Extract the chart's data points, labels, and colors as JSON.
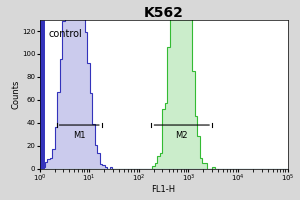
{
  "title": "K562",
  "xlabel": "FL1-H",
  "ylabel": "Counts",
  "ylim": [
    0,
    130
  ],
  "yticks": [
    0,
    20,
    40,
    60,
    80,
    100,
    120
  ],
  "xlim_log": [
    1,
    100000
  ],
  "background_color": "#d8d8d8",
  "plot_bg_color": "#ffffff",
  "control_label": "control",
  "control_color": "#3333bb",
  "sample_color": "#33bb33",
  "m1_label": "M1",
  "m2_label": "M2",
  "title_fontsize": 10,
  "axis_fontsize": 5,
  "label_fontsize": 6,
  "control_peak_x": 5,
  "sample_peak_x": 700,
  "control_sigma": 0.45,
  "sample_sigma": 0.38,
  "m1_start": 2.2,
  "m1_end": 18,
  "m2_start": 180,
  "m2_end": 3000,
  "m1_y": 38,
  "m2_y": 38,
  "n_samples": 2500
}
